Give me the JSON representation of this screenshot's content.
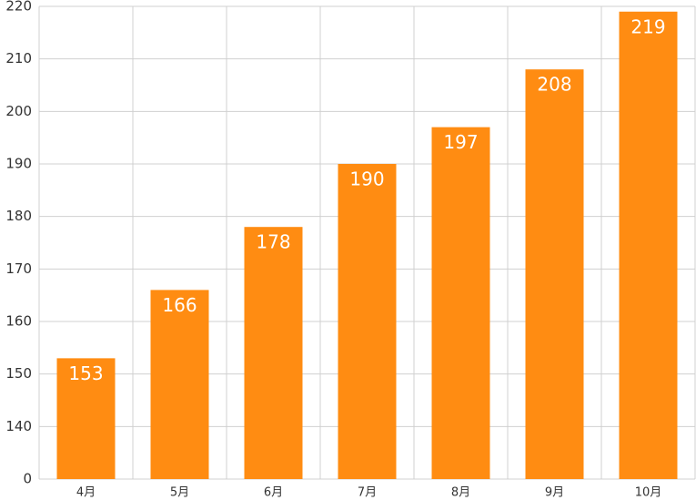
{
  "chart_data": {
    "type": "bar",
    "categories": [
      "4月",
      "5月",
      "6月",
      "7月",
      "8月",
      "9月",
      "10月"
    ],
    "values": [
      153,
      166,
      178,
      190,
      197,
      208,
      219
    ],
    "color": "#ff8c12",
    "ylim": [
      0,
      220
    ],
    "yticks": [
      0,
      140,
      150,
      160,
      170,
      180,
      190,
      200,
      210,
      220
    ],
    "axis_break": true,
    "grid": true
  }
}
